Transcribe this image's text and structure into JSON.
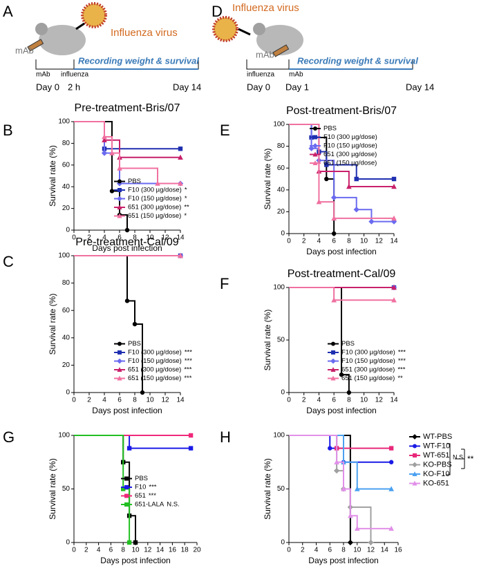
{
  "diagrams": [
    {
      "panel": "A",
      "virus_label": "Influenza virus",
      "antibody_label": "mAb",
      "recording_label": "Recording weight & survival",
      "events": [
        "mAb",
        "influenza"
      ],
      "times": [
        "Day 0",
        "2 h",
        "Day 14"
      ]
    },
    {
      "panel": "D",
      "virus_label": "Influenza virus",
      "antibody_label": "mAb",
      "recording_label": "Recording weight & survival",
      "events": [
        "influenza",
        "mAb"
      ],
      "times": [
        "Day 0",
        "Day 1",
        "Day 14"
      ]
    }
  ],
  "chart_data": [
    {
      "type": "step",
      "panel": "B",
      "title": "Pre-treatment-Bris/07",
      "x_label": "Days post infection",
      "y_label": "Survival rate (%)",
      "xlim": [
        0,
        14
      ],
      "xticks": [
        0,
        2,
        4,
        6,
        8,
        10,
        12,
        14
      ],
      "ylim": [
        0,
        100
      ],
      "yticks": [
        0,
        20,
        40,
        60,
        80,
        100
      ],
      "legend": "lower right",
      "series": [
        {
          "name": "PBS",
          "color": "#000000",
          "marker": "circle",
          "x": [
            0,
            5,
            6,
            7
          ],
          "values": [
            100,
            36,
            14,
            0
          ]
        },
        {
          "name": "F10 (300 µg/dose)",
          "significance": "*",
          "color": "#1f2fb0",
          "marker": "square",
          "x": [
            0,
            4,
            14
          ],
          "values": [
            100,
            75,
            75
          ]
        },
        {
          "name": "F10 (150 µg/dose)",
          "significance": "*",
          "color": "#6a6af0",
          "marker": "diamond",
          "x": [
            0,
            4,
            6,
            14
          ],
          "values": [
            100,
            71,
            43,
            43
          ]
        },
        {
          "name": "651 (300 µg/dose)",
          "significance": "**",
          "color": "#c8206a",
          "marker": "triangle",
          "x": [
            0,
            4,
            6,
            14
          ],
          "values": [
            100,
            83,
            67,
            67
          ]
        },
        {
          "name": "651 (150 µg/dose)",
          "significance": "*",
          "color": "#f070a0",
          "marker": "triangle",
          "x": [
            0,
            4,
            5,
            6,
            11,
            14
          ],
          "values": [
            100,
            86,
            71,
            57,
            43,
            43
          ]
        }
      ]
    },
    {
      "type": "step",
      "panel": "E",
      "title": "Post-treatment-Bris/07",
      "x_label": "Days post infection",
      "y_label": "Survival rate (%)",
      "xlim": [
        0,
        14
      ],
      "xticks": [
        0,
        2,
        4,
        6,
        8,
        10,
        12,
        14
      ],
      "ylim": [
        0,
        100
      ],
      "yticks": [
        0,
        20,
        40,
        60,
        80,
        100
      ],
      "legend": "upper right",
      "series": [
        {
          "name": "PBS",
          "color": "#000000",
          "marker": "circle",
          "x": [
            0,
            3,
            5,
            6
          ],
          "values": [
            100,
            88,
            50,
            0
          ]
        },
        {
          "name": "F10 (300 µg/dose)",
          "color": "#1f2fb0",
          "marker": "square",
          "x": [
            0,
            3,
            4,
            5,
            9,
            14
          ],
          "values": [
            100,
            88,
            75,
            63,
            50,
            50
          ]
        },
        {
          "name": "F10 (150 µg/dose)",
          "color": "#6a6af0",
          "marker": "diamond",
          "x": [
            0,
            3,
            4,
            6,
            9,
            11,
            14
          ],
          "values": [
            100,
            78,
            67,
            33,
            22,
            11,
            11
          ]
        },
        {
          "name": "651 (300 µg/dose)",
          "color": "#c8206a",
          "marker": "triangle",
          "x": [
            0,
            4,
            8,
            14
          ],
          "values": [
            100,
            57,
            43,
            43
          ]
        },
        {
          "name": "651 (150 µg/dose)",
          "color": "#f070a0",
          "marker": "triangle",
          "x": [
            0,
            4,
            6,
            14
          ],
          "values": [
            100,
            29,
            14,
            14
          ]
        }
      ]
    },
    {
      "type": "step",
      "panel": "C",
      "title": "Pre-treatment-Cal/09",
      "x_label": "Days post infection",
      "y_label": "Survival rate (%)",
      "xlim": [
        0,
        14
      ],
      "xticks": [
        0,
        2,
        4,
        6,
        8,
        10,
        12,
        14
      ],
      "ylim": [
        0,
        100
      ],
      "yticks": [
        0,
        20,
        40,
        60,
        80,
        100
      ],
      "legend": "lower right",
      "series": [
        {
          "name": "PBS",
          "color": "#000000",
          "marker": "circle",
          "x": [
            0,
            7,
            8,
            9
          ],
          "values": [
            100,
            67,
            50,
            0
          ]
        },
        {
          "name": "F10 (300 µg/dose)",
          "significance": "***",
          "color": "#1f2fb0",
          "marker": "square",
          "x": [
            0,
            14
          ],
          "values": [
            100,
            100
          ]
        },
        {
          "name": "F10 (150 µg/dose)",
          "significance": "***",
          "color": "#6a6af0",
          "marker": "diamond",
          "x": [
            0,
            14
          ],
          "values": [
            100,
            100
          ]
        },
        {
          "name": "651 (300 µg/dose)",
          "significance": "***",
          "color": "#c8206a",
          "marker": "triangle",
          "x": [
            0,
            14
          ],
          "values": [
            100,
            100
          ]
        },
        {
          "name": "651 (150 µg/dose)",
          "significance": "***",
          "color": "#f070a0",
          "marker": "triangle",
          "x": [
            0,
            14
          ],
          "values": [
            100,
            100
          ]
        }
      ]
    },
    {
      "type": "step",
      "panel": "F",
      "title": "Post-treatment-Cal/09",
      "x_label": "Days post infection",
      "y_label": "Survival rate (%)",
      "xlim": [
        0,
        14
      ],
      "xticks": [
        0,
        2,
        4,
        6,
        8,
        10,
        12,
        14
      ],
      "ylim": [
        0,
        100
      ],
      "yticks": [
        0,
        50,
        100
      ],
      "legend": "lower right",
      "series": [
        {
          "name": "PBS",
          "color": "#000000",
          "marker": "circle",
          "x": [
            0,
            7,
            8
          ],
          "values": [
            100,
            17,
            0
          ]
        },
        {
          "name": "F10 (300 µg/dose)",
          "significance": "***",
          "color": "#1f2fb0",
          "marker": "square",
          "x": [
            0,
            14
          ],
          "values": [
            100,
            100
          ]
        },
        {
          "name": "F10 (150 µg/dose)",
          "significance": "***",
          "color": "#6a6af0",
          "marker": "diamond",
          "x": [
            0,
            14
          ],
          "values": [
            100,
            100
          ]
        },
        {
          "name": "651 (300 µg/dose)",
          "significance": "***",
          "color": "#c8206a",
          "marker": "triangle",
          "x": [
            0,
            14
          ],
          "values": [
            100,
            100
          ]
        },
        {
          "name": "651 (150 µg/dose)",
          "significance": "**",
          "color": "#f070a0",
          "marker": "triangle",
          "x": [
            0,
            6,
            14
          ],
          "values": [
            100,
            88,
            88
          ]
        }
      ]
    },
    {
      "type": "step",
      "panel": "G",
      "x_label": "Days post infection",
      "y_label": "Survival rate (%)",
      "xlim": [
        0,
        20
      ],
      "xticks": [
        0,
        2,
        4,
        6,
        8,
        10,
        12,
        14,
        16,
        18,
        20
      ],
      "ylim": [
        0,
        100
      ],
      "yticks": [
        0,
        50,
        100
      ],
      "legend": "center right",
      "series": [
        {
          "name": "PBS",
          "color": "#000000",
          "marker": "square",
          "x": [
            0,
            8,
            9,
            10
          ],
          "values": [
            100,
            75,
            25,
            0
          ]
        },
        {
          "name": "F10",
          "significance": "***",
          "color": "#1a1ae6",
          "marker": "square",
          "x": [
            0,
            9,
            19
          ],
          "values": [
            100,
            88,
            88
          ]
        },
        {
          "name": "651",
          "significance": "***",
          "color": "#f0287a",
          "marker": "square",
          "x": [
            0,
            19
          ],
          "values": [
            100,
            100
          ]
        },
        {
          "name": "651-LALA",
          "significance": "N.S.",
          "color": "#22c022",
          "marker": "square",
          "x": [
            0,
            8,
            9
          ],
          "values": [
            100,
            50,
            0
          ]
        }
      ]
    },
    {
      "type": "step",
      "panel": "H",
      "x_label": "Days post infection",
      "y_label": "Survival rate (%)",
      "xlim": [
        0,
        16
      ],
      "xticks": [
        0,
        2,
        4,
        6,
        8,
        10,
        12,
        14,
        16
      ],
      "ylim": [
        0,
        100
      ],
      "yticks": [
        0,
        50,
        100
      ],
      "legend": "outside right",
      "annotations": [
        "N.S.",
        "**"
      ],
      "series": [
        {
          "name": "WT-PBS",
          "color": "#000000",
          "marker": "diamond",
          "x": [
            0,
            9
          ],
          "values": [
            100,
            0
          ]
        },
        {
          "name": "WT-F10",
          "color": "#1a1ae6",
          "marker": "circle",
          "x": [
            0,
            6,
            8,
            15
          ],
          "values": [
            100,
            88,
            75,
            75
          ]
        },
        {
          "name": "WT-651",
          "color": "#e8287a",
          "marker": "square",
          "x": [
            0,
            7,
            15
          ],
          "values": [
            100,
            88,
            88
          ]
        },
        {
          "name": "KO-PBS",
          "color": "#a0a0a0",
          "marker": "diamond",
          "x": [
            0,
            7,
            8,
            9,
            12
          ],
          "values": [
            100,
            67,
            50,
            33,
            0
          ]
        },
        {
          "name": "KO-F10",
          "color": "#4aa0f0",
          "marker": "triangle",
          "x": [
            0,
            8,
            10,
            15
          ],
          "values": [
            100,
            75,
            50,
            50
          ]
        },
        {
          "name": "KO-651",
          "color": "#e090e8",
          "marker": "triangle",
          "x": [
            0,
            7,
            8,
            9,
            10,
            15
          ],
          "values": [
            100,
            75,
            50,
            25,
            13,
            13
          ]
        }
      ]
    }
  ]
}
